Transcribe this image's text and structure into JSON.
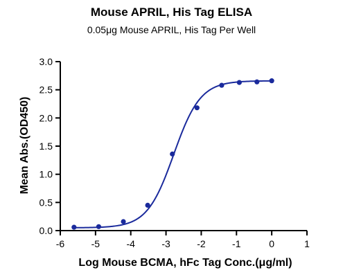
{
  "chart_data": {
    "type": "line",
    "title": "Mouse APRIL, His Tag ELISA",
    "subtitle": "0.05μg Mouse APRIL, His Tag Per Well",
    "xlabel": "Log Mouse BCMA, hFc Tag Conc.(μg/ml)",
    "ylabel": "Mean Abs.(OD450)",
    "xlim": [
      -6,
      1
    ],
    "ylim": [
      0,
      3.0
    ],
    "xticks": [
      -6,
      -5,
      -4,
      -3,
      -2,
      -1,
      0,
      1
    ],
    "yticks": [
      0,
      0.5,
      1.0,
      1.5,
      2.0,
      2.5,
      3.0
    ],
    "xtick_labels": [
      "-6",
      "-5",
      "-4",
      "-3",
      "-2",
      "-1",
      "0",
      "1"
    ],
    "ytick_labels": [
      "0.0",
      "0.5",
      "1.0",
      "1.5",
      "2.0",
      "2.5",
      "3.0"
    ],
    "series": [
      {
        "points": [
          {
            "x": -5.61,
            "y": 0.06
          },
          {
            "x": -4.91,
            "y": 0.07
          },
          {
            "x": -4.21,
            "y": 0.16
          },
          {
            "x": -3.52,
            "y": 0.45
          },
          {
            "x": -2.82,
            "y": 1.36
          },
          {
            "x": -2.12,
            "y": 2.18
          },
          {
            "x": -1.42,
            "y": 2.58
          },
          {
            "x": -0.92,
            "y": 2.63
          },
          {
            "x": -0.42,
            "y": 2.64
          },
          {
            "x": 0.0,
            "y": 2.66
          }
        ],
        "fit": {
          "model": "4PL",
          "bottom": 0.05,
          "top": 2.66,
          "logEC50": -2.78,
          "hill": 1.15
        }
      }
    ],
    "color": "#1a2a9c",
    "grid": false,
    "legend": "none"
  }
}
